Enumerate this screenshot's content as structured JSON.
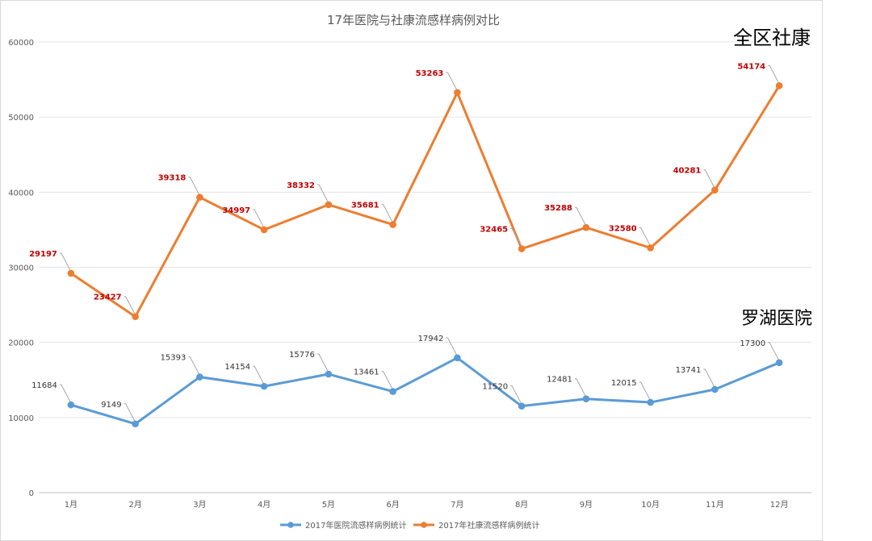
{
  "chart_data": {
    "type": "line",
    "title": "17年医院与社康流感样病例对比",
    "categories": [
      "1月",
      "2月",
      "3月",
      "4月",
      "5月",
      "6月",
      "7月",
      "8月",
      "9月",
      "10月",
      "11月",
      "12月"
    ],
    "series": [
      {
        "name": "2017年医院流感样病例统计",
        "color": "#5b9bd5",
        "label_color": "#333333",
        "values": [
          11684,
          9149,
          15393,
          14154,
          15776,
          13461,
          17942,
          11520,
          12481,
          12015,
          13741,
          17300
        ]
      },
      {
        "name": "2017年社康流感样病例统计",
        "color": "#ed7d31",
        "label_color": "#c00000",
        "values": [
          29197,
          23427,
          39318,
          34997,
          38332,
          35681,
          53263,
          32465,
          35288,
          32580,
          40281,
          54174
        ]
      }
    ],
    "ylim": [
      0,
      60000
    ],
    "yticks": [
      "0",
      "10000",
      "20000",
      "30000",
      "40000",
      "50000",
      "60000"
    ],
    "grid": true,
    "legend_position": "bottom",
    "annotations": [
      "全区社康",
      "罗湖医院"
    ]
  }
}
